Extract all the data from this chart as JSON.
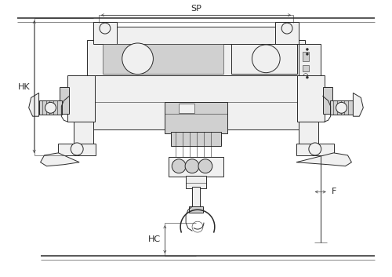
{
  "bg_color": "#ffffff",
  "line_color": "#2a2a2a",
  "fill_light": "#f0f0f0",
  "fill_mid": "#d0d0d0",
  "fill_dark": "#a0a0a0",
  "labels": {
    "SP": "SP",
    "HK": "HK",
    "HC": "HC",
    "F": "F"
  },
  "figsize": [
    5.0,
    3.53
  ],
  "dpi": 100
}
